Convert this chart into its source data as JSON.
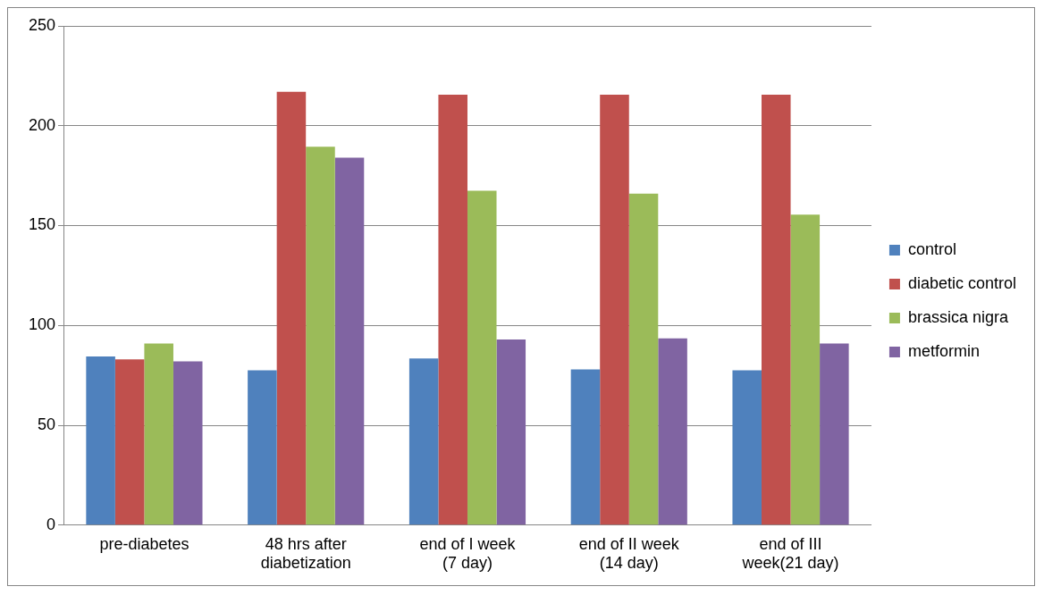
{
  "chart_data": {
    "type": "bar",
    "categories": [
      "pre-diabetes",
      "48 hrs after diabetization",
      "end of I week (7 day)",
      "end of II week (14 day)",
      "end of III week(21 day)"
    ],
    "series": [
      {
        "name": "control",
        "color": "#4f81bd",
        "values": [
          84.5,
          77.5,
          83.5,
          78,
          77.5
        ]
      },
      {
        "name": "diabetic control",
        "color": "#c0504d",
        "values": [
          83,
          217,
          215.5,
          215.5,
          215.5
        ]
      },
      {
        "name": "brassica nigra",
        "color": "#9bbb59",
        "values": [
          91,
          189.5,
          167.5,
          166,
          155.5
        ]
      },
      {
        "name": "metformin",
        "color": "#8064a2",
        "values": [
          82,
          184,
          93,
          93.5,
          91
        ]
      }
    ],
    "ylim": [
      0,
      250
    ],
    "yticks": [
      0,
      50,
      100,
      150,
      200,
      250
    ],
    "grid": "y",
    "legend": "right"
  }
}
